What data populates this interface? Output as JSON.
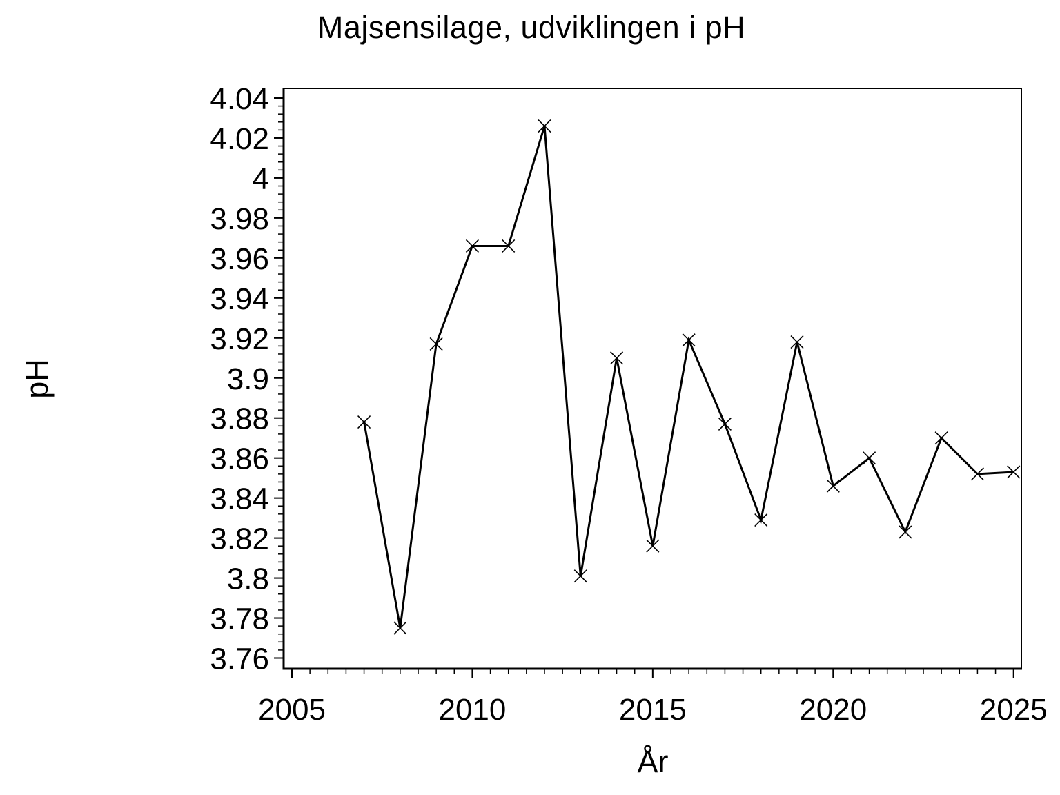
{
  "page": {
    "background_color": "#ffffff",
    "foreground_color": "#000000"
  },
  "chart_data": {
    "type": "line",
    "title": "Majsensilage, udviklingen i pH",
    "xlabel": "År",
    "ylabel": "pH",
    "x": [
      2007,
      2008,
      2009,
      2010,
      2011,
      2012,
      2013,
      2014,
      2015,
      2016,
      2017,
      2018,
      2019,
      2020,
      2021,
      2022,
      2023,
      2024,
      2025
    ],
    "y": [
      3.878,
      3.775,
      3.917,
      3.966,
      3.966,
      4.026,
      3.801,
      3.91,
      3.816,
      3.919,
      3.877,
      3.829,
      3.918,
      3.846,
      3.86,
      3.823,
      3.87,
      3.852,
      3.853
    ],
    "marker": "x",
    "line_color": "#000000",
    "marker_color": "#000000",
    "xlim": [
      2005,
      2025
    ],
    "ylim": [
      3.76,
      4.04
    ],
    "x_major_ticks": [
      2005,
      2010,
      2015,
      2020,
      2025
    ],
    "x_tick_labels": [
      "2005",
      "2010",
      "2015",
      "2020",
      "2025"
    ],
    "x_minor_step": 0.5,
    "y_major_step": 0.02,
    "y_tick_labels": [
      "3.76",
      "3.78",
      "3.8",
      "3.82",
      "3.84",
      "3.86",
      "3.88",
      "3.9",
      "3.92",
      "3.94",
      "3.96",
      "3.98",
      "4",
      "4.02",
      "4.04"
    ],
    "y_minor_per_major": 4,
    "grid": false,
    "legend": false
  }
}
